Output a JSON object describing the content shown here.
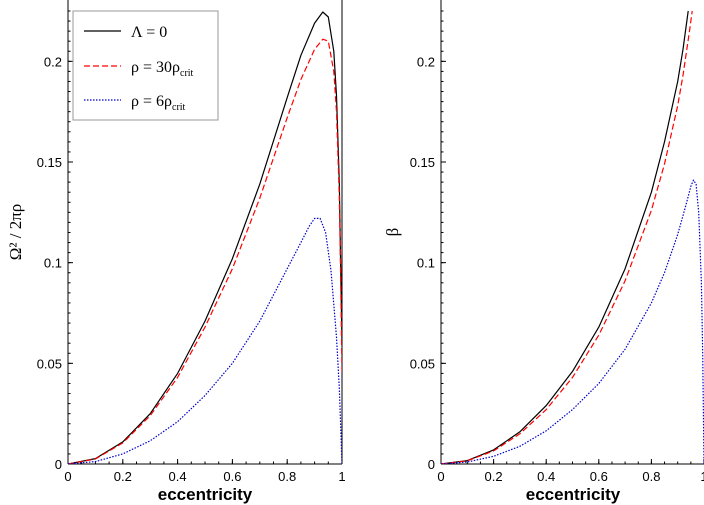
{
  "chart_data": [
    {
      "type": "line",
      "panel": "left",
      "xlabel": "eccentricity",
      "ylabel": "Ω² / 2πρ",
      "xlim": [
        0,
        1
      ],
      "ylim": [
        0,
        0.225
      ],
      "xticks": [
        "0",
        "0.2",
        "0.4",
        "0.6",
        "0.8",
        "1"
      ],
      "yticks": [
        "0",
        "0.05",
        "0.1",
        "0.15",
        "0.2"
      ],
      "legend_position": "top-left",
      "legend": [
        {
          "label_main": "Λ  =  0",
          "label_sub": "",
          "color": "#000000",
          "style": "solid"
        },
        {
          "label_main": "ρ = 30ρ",
          "label_sub": "crit",
          "color": "#ff0000",
          "style": "dashed"
        },
        {
          "label_main": "ρ = 6ρ",
          "label_sub": "crit",
          "color": "#0000cc",
          "style": "dotted"
        }
      ],
      "series": [
        {
          "color": "#000000",
          "style": "solid",
          "x": [
            0,
            0.1,
            0.2,
            0.3,
            0.4,
            0.5,
            0.6,
            0.7,
            0.8,
            0.85,
            0.9,
            0.93,
            0.95,
            0.97,
            0.98,
            0.99,
            0.995,
            1.0
          ],
          "y": [
            0,
            0.0027,
            0.011,
            0.025,
            0.045,
            0.071,
            0.102,
            0.139,
            0.182,
            0.203,
            0.219,
            0.2245,
            0.222,
            0.205,
            0.183,
            0.14,
            0.1,
            0.06
          ]
        },
        {
          "color": "#ff0000",
          "style": "dashed",
          "x": [
            0,
            0.1,
            0.2,
            0.3,
            0.4,
            0.5,
            0.6,
            0.7,
            0.8,
            0.85,
            0.9,
            0.93,
            0.95,
            0.97,
            0.98,
            0.99,
            0.995,
            1.0
          ],
          "y": [
            0,
            0.0025,
            0.0105,
            0.024,
            0.043,
            0.068,
            0.097,
            0.132,
            0.172,
            0.191,
            0.206,
            0.211,
            0.21,
            0.195,
            0.175,
            0.133,
            0.095,
            0.045
          ]
        },
        {
          "color": "#0000cc",
          "style": "dotted",
          "x": [
            0,
            0.1,
            0.2,
            0.3,
            0.4,
            0.5,
            0.6,
            0.7,
            0.8,
            0.85,
            0.88,
            0.9,
            0.92,
            0.94,
            0.96,
            0.98,
            0.99,
            1.0
          ],
          "y": [
            0,
            0.0012,
            0.005,
            0.0115,
            0.021,
            0.034,
            0.05,
            0.071,
            0.097,
            0.11,
            0.118,
            0.122,
            0.122,
            0.115,
            0.096,
            0.063,
            0.038,
            0
          ]
        }
      ]
    },
    {
      "type": "line",
      "panel": "right",
      "xlabel": "eccentricity",
      "ylabel": "β",
      "xlim": [
        0,
        1
      ],
      "ylim": [
        0,
        0.225
      ],
      "xticks": [
        "0",
        "0.2",
        "0.4",
        "0.6",
        "0.8",
        "1"
      ],
      "yticks": [
        "0",
        "0.05",
        "0.1",
        "0.15",
        "0.2"
      ],
      "series": [
        {
          "color": "#000000",
          "style": "solid",
          "x": [
            0,
            0.1,
            0.2,
            0.3,
            0.4,
            0.5,
            0.6,
            0.7,
            0.8,
            0.85,
            0.9,
            0.92,
            0.94
          ],
          "y": [
            0,
            0.0017,
            0.007,
            0.016,
            0.029,
            0.046,
            0.068,
            0.097,
            0.135,
            0.16,
            0.19,
            0.206,
            0.225
          ]
        },
        {
          "color": "#ff0000",
          "style": "dashed",
          "x": [
            0,
            0.1,
            0.2,
            0.3,
            0.4,
            0.5,
            0.6,
            0.7,
            0.8,
            0.85,
            0.9,
            0.92,
            0.945,
            0.955
          ],
          "y": [
            0,
            0.0016,
            0.0065,
            0.015,
            0.027,
            0.043,
            0.064,
            0.091,
            0.126,
            0.149,
            0.178,
            0.193,
            0.215,
            0.225
          ]
        },
        {
          "color": "#0000cc",
          "style": "dotted",
          "x": [
            0,
            0.1,
            0.2,
            0.3,
            0.4,
            0.5,
            0.6,
            0.7,
            0.8,
            0.85,
            0.9,
            0.93,
            0.95,
            0.96,
            0.97,
            0.98,
            0.99,
            0.995,
            1.0
          ],
          "y": [
            0,
            0.001,
            0.0038,
            0.0088,
            0.0165,
            0.027,
            0.04,
            0.057,
            0.08,
            0.095,
            0.114,
            0.128,
            0.138,
            0.141,
            0.139,
            0.125,
            0.09,
            0.055,
            0
          ]
        }
      ]
    }
  ]
}
